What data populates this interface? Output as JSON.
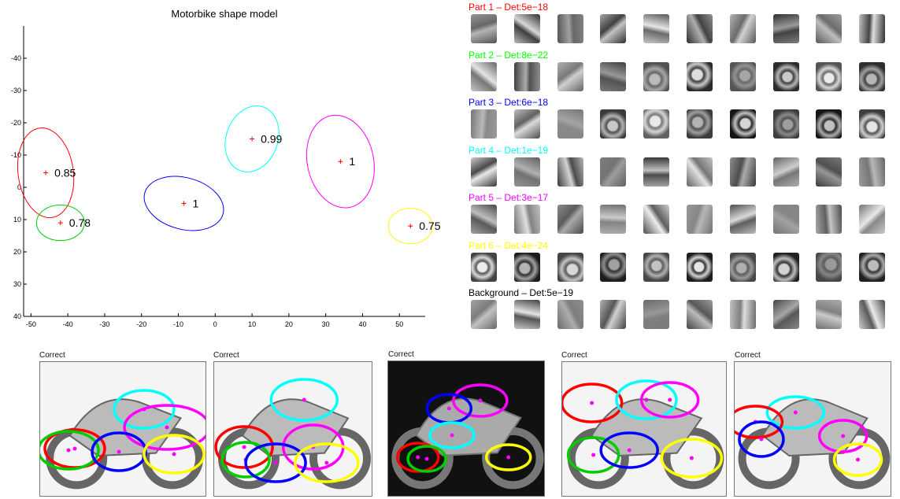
{
  "figure": {
    "shape_model": {
      "title": "Motorbike shape model",
      "x_ticks": [
        "-50",
        "-40",
        "-30",
        "-20",
        "-10",
        "0",
        "10",
        "20",
        "30",
        "40",
        "50"
      ],
      "y_ticks": [
        "-40",
        "-30",
        "-20",
        "-10",
        "0",
        "10",
        "20",
        "30",
        "40"
      ],
      "xlim": [
        -52,
        57
      ],
      "ylim": [
        -50,
        40
      ],
      "y_inverted": true,
      "parts": [
        {
          "part": 1,
          "color": "#ff0000",
          "x": -46,
          "y": -4.5,
          "label": "0.85",
          "rx": 7.5,
          "ry": 14,
          "angle": -8
        },
        {
          "part": 2,
          "color": "#00cc00",
          "x": -42,
          "y": 11,
          "label": "0.78",
          "rx": 6.5,
          "ry": 5.5,
          "angle": 0
        },
        {
          "part": 3,
          "color": "#0000ff",
          "x": -8.5,
          "y": 5,
          "label": "1",
          "rx": 11,
          "ry": 8,
          "angle": 15
        },
        {
          "part": 4,
          "color": "#00ffff",
          "x": 10,
          "y": -15,
          "label": "0.99",
          "rx": 7,
          "ry": 10.5,
          "angle": 20
        },
        {
          "part": 5,
          "color": "#ff00ff",
          "x": 34,
          "y": -8,
          "label": "1",
          "rx": 9,
          "ry": 14.5,
          "angle": -12
        },
        {
          "part": 6,
          "color": "#ffff00",
          "x": 53,
          "y": 12,
          "label": "0.75",
          "rx": 6,
          "ry": 5.5,
          "angle": 0
        }
      ]
    },
    "appearance": {
      "rows": [
        {
          "label": "Part 1 – Det:5e−18",
          "color": "#ff0000"
        },
        {
          "label": "Part 2 – Det:8e−22",
          "color": "#00ff00"
        },
        {
          "label": "Part 3 – Det:6e−18",
          "color": "#0000ff"
        },
        {
          "label": "Part 4 – Det:1e−19",
          "color": "#00ffff"
        },
        {
          "label": "Part 5 – Det:3e−17",
          "color": "#ff00ff"
        },
        {
          "label": "Part 6 – Det:4e−24",
          "color": "#ffff00"
        },
        {
          "label": "Background – Det:5e−19",
          "color": "#000000"
        }
      ],
      "patches_per_row": 10
    },
    "examples": [
      {
        "label": "Correct",
        "background": "light"
      },
      {
        "label": "Correct",
        "background": "light"
      },
      {
        "label": "Correct",
        "background": "dark"
      },
      {
        "label": "Correct",
        "background": "light"
      },
      {
        "label": "Correct",
        "background": "light"
      }
    ],
    "colors": {
      "part1": "#ff0000",
      "part2": "#00cc00",
      "part3": "#0000ff",
      "part4": "#00ffff",
      "part5": "#ff00ff",
      "part6": "#ffff00"
    }
  }
}
